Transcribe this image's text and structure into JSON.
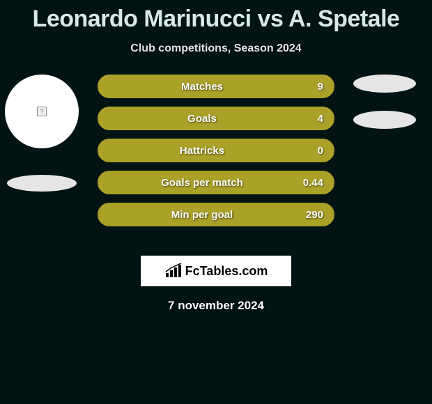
{
  "colors": {
    "background": "#011313",
    "title": "#d9e8e6",
    "bar_fill": "#aaa128",
    "shadow": "#e6e6e6",
    "logo_bg": "#ffffff"
  },
  "title": "Leonardo Marinucci vs A. Spetale",
  "subtitle": "Club competitions, Season 2024",
  "player_left": {
    "name": "Leonardo Marinucci"
  },
  "player_right": {
    "name": "A. Spetale"
  },
  "stats": [
    {
      "label": "Matches",
      "value": "9"
    },
    {
      "label": "Goals",
      "value": "4"
    },
    {
      "label": "Hattricks",
      "value": "0"
    },
    {
      "label": "Goals per match",
      "value": "0.44"
    },
    {
      "label": "Min per goal",
      "value": "290"
    }
  ],
  "logo_text": "FcTables.com",
  "date": "7 november 2024"
}
